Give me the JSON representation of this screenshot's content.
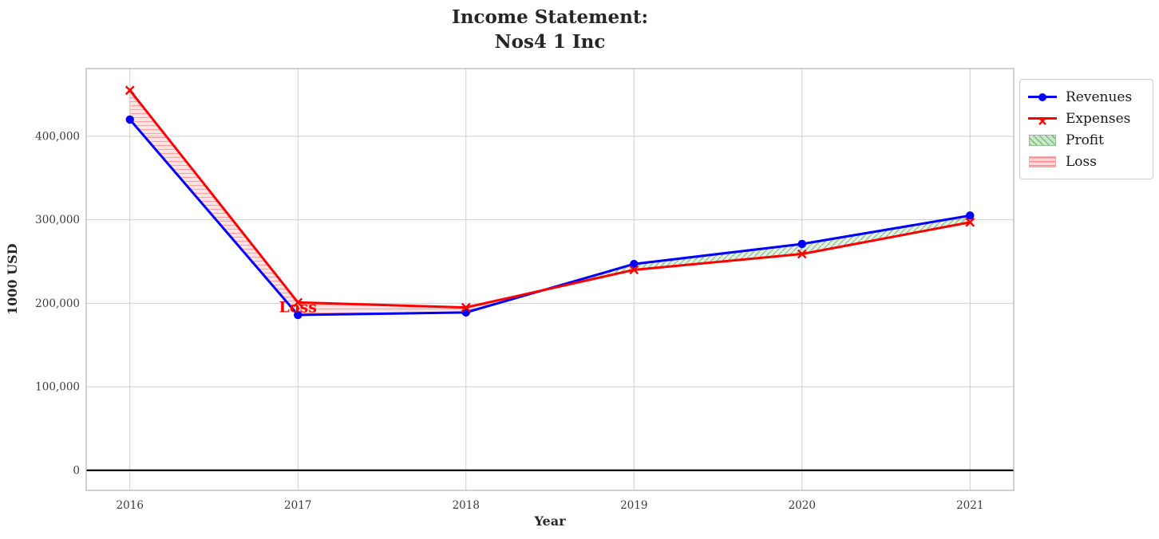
{
  "chart_data": {
    "type": "line",
    "title": "Income Statement:\nNos4 1 Inc",
    "title_lines": [
      "Income Statement:",
      "Nos4 1 Inc"
    ],
    "xlabel": "Year",
    "ylabel": "1000 USD",
    "x": [
      2016,
      2017,
      2018,
      2019,
      2020,
      2021
    ],
    "x_tick_labels": [
      "2016",
      "2017",
      "2018",
      "2019",
      "2020",
      "2021"
    ],
    "y_ticks": [
      0,
      100000,
      200000,
      300000,
      400000
    ],
    "y_tick_labels": [
      "0",
      "100,000",
      "200,000",
      "300,000",
      "400,000"
    ],
    "xlim": [
      2015.74,
      2021.26
    ],
    "ylim": [
      -24000,
      481000
    ],
    "grid": true,
    "zero_line": true,
    "series": [
      {
        "name": "Revenues",
        "color": "#0000ff",
        "marker": "circle",
        "values": [
          420000,
          186000,
          189000,
          247000,
          271000,
          305000
        ]
      },
      {
        "name": "Expenses",
        "color": "#ff0000",
        "marker": "x",
        "values": [
          455000,
          201000,
          195000,
          240000,
          259000,
          297000
        ]
      }
    ],
    "fills": [
      {
        "name": "Profit",
        "condition": "revenues_above_expenses",
        "color": "#2e8b2e",
        "hatch": "diagonal"
      },
      {
        "name": "Loss",
        "condition": "expenses_above_revenues",
        "color": "#ff0000",
        "hatch": "horizontal"
      }
    ],
    "annotations": [
      {
        "text": "Loss",
        "x": 2017,
        "y": 195000,
        "color": "#ff0000"
      }
    ],
    "legend_position": "upper right outside"
  },
  "legend": {
    "items": [
      {
        "label": "Revenues",
        "type": "line",
        "color": "#0000ff",
        "marker": "circle"
      },
      {
        "label": "Expenses",
        "type": "line",
        "color": "#ff0000",
        "marker": "x"
      },
      {
        "label": "Profit",
        "type": "patch",
        "color": "#2e8b2e",
        "hatch": "diagonal"
      },
      {
        "label": "Loss",
        "type": "patch",
        "color": "#ff0000",
        "hatch": "horizontal"
      }
    ]
  },
  "colors": {
    "revenues": "#0000ff",
    "expenses": "#ff0000",
    "grid": "#cfcfcf",
    "spine": "#b3b3b3",
    "text": "#262626",
    "tick_text": "#3a3a3a",
    "zero_line": "#000000"
  }
}
